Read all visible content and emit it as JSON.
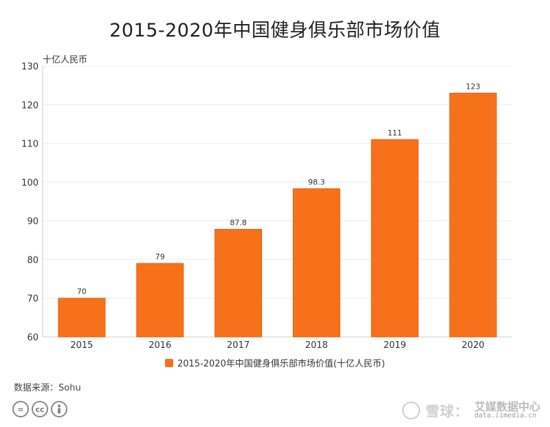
{
  "header": {
    "title": "2015-2020年中国健身俱乐部市场价值",
    "unit_label": "十亿人民币"
  },
  "legend": {
    "label": "2015-2020年中国健身俱乐部市场价值(十亿人民币)"
  },
  "footer": {
    "source": "数据来源：Sohu",
    "watermark_text": "雪球：",
    "watermark_brand": "艾媒数据中心",
    "watermark_url": "data.iimedia.cn"
  },
  "colors": {
    "bar": "#f7711a",
    "bar_edge": "#e8600c",
    "grid": "#ececec",
    "axis": "#cccccc"
  },
  "icons": [
    "equals-icon",
    "cc-icon",
    "person-icon"
  ],
  "chart_data": {
    "type": "bar",
    "title": "2015-2020年中国健身俱乐部市场价值",
    "ylabel": "十亿人民币",
    "xlabel": "",
    "categories": [
      "2015",
      "2016",
      "2017",
      "2018",
      "2019",
      "2020"
    ],
    "series": [
      {
        "name": "2015-2020年中国健身俱乐部市场价值(十亿人民币)",
        "values": [
          70,
          79,
          87.8,
          98.3,
          111,
          123
        ],
        "labels": [
          "70",
          "79",
          "87.8",
          "98.3",
          "111",
          "123"
        ]
      }
    ],
    "ylim": [
      60,
      130
    ],
    "yticks": [
      60,
      70,
      80,
      90,
      100,
      110,
      120,
      130
    ],
    "grid": true,
    "legend_position": "bottom"
  }
}
